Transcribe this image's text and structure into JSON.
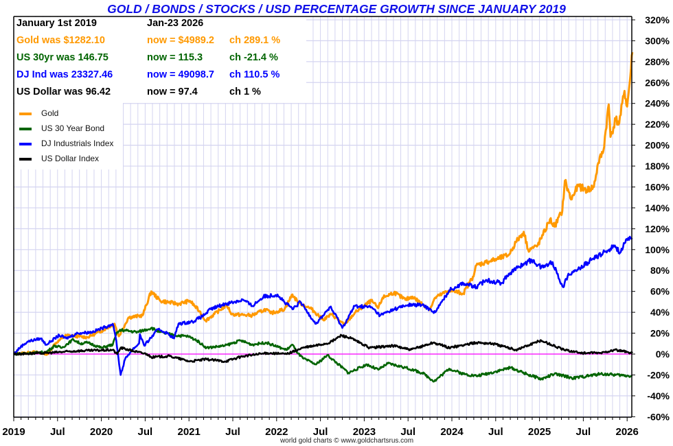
{
  "title": "GOLD / BONDS / STOCKS / USD PERCENTAGE GROWTH SINCE JANUARY 2019",
  "info": {
    "header": [
      "January 1st 2019",
      "Jan-23  2026"
    ],
    "rows": [
      {
        "was": "Gold was $1282.10",
        "now": "now = $4989.2",
        "ch": "ch 289.1 %",
        "color": "#ff9900"
      },
      {
        "was": "US 30yr was 146.75",
        "now": "now = 115.3",
        "ch": "ch -21.4 %",
        "color": "#006400"
      },
      {
        "was": "DJ Ind was 23327.46",
        "now": "now = 49098.7",
        "ch": "ch 110.5 %",
        "color": "#0000ff"
      },
      {
        "was": "US Dollar was 96.42",
        "now": "now = 97.4",
        "ch": "ch 1 %",
        "color": "#000000"
      }
    ]
  },
  "credit": "world gold charts © www.goldchartsrus.com",
  "chart_data": {
    "type": "line",
    "title": "GOLD / BONDS / STOCKS / USD PERCENTAGE GROWTH SINCE JANUARY 2019",
    "x_unit": "years since 2019-01-01",
    "xlim": [
      0,
      7.06
    ],
    "x_tick_labels": [
      "2019",
      "Jul",
      "2020",
      "Jul",
      "2021",
      "Jul",
      "2022",
      "Jul",
      "2023",
      "Jul",
      "2024",
      "Jul",
      "2025",
      "Jul",
      "2026"
    ],
    "y_tick_labels": [
      "320%",
      "300%",
      "280%",
      "260%",
      "240%",
      "220%",
      "200%",
      "180%",
      "160%",
      "140%",
      "120%",
      "100%",
      "80%",
      "60%",
      "40%",
      "20%",
      "0%",
      "-20%",
      "-40%",
      "-60%"
    ],
    "ylim": [
      -60,
      320
    ],
    "grid": true,
    "legend_position": "top-left",
    "zero_line_color": "#ff00ff",
    "series": [
      {
        "name": "Gold",
        "color": "#ff9900",
        "points": [
          [
            0,
            0
          ],
          [
            0.24,
            2
          ],
          [
            0.39,
            0
          ],
          [
            0.47,
            10
          ],
          [
            0.6,
            18
          ],
          [
            0.84,
            16
          ],
          [
            1.0,
            22
          ],
          [
            1.15,
            29
          ],
          [
            1.2,
            17
          ],
          [
            1.31,
            35
          ],
          [
            1.47,
            37
          ],
          [
            1.57,
            60
          ],
          [
            1.67,
            51
          ],
          [
            1.88,
            48
          ],
          [
            2.01,
            51
          ],
          [
            2.12,
            41
          ],
          [
            2.19,
            32
          ],
          [
            2.43,
            47
          ],
          [
            2.49,
            38
          ],
          [
            2.72,
            37
          ],
          [
            2.88,
            43
          ],
          [
            2.93,
            39
          ],
          [
            3.09,
            43
          ],
          [
            3.18,
            57
          ],
          [
            3.24,
            50
          ],
          [
            3.35,
            45
          ],
          [
            3.4,
            43
          ],
          [
            3.53,
            33
          ],
          [
            3.63,
            38
          ],
          [
            3.77,
            28
          ],
          [
            3.9,
            40
          ],
          [
            4.08,
            51
          ],
          [
            4.16,
            44
          ],
          [
            4.21,
            54
          ],
          [
            4.34,
            59
          ],
          [
            4.47,
            52
          ],
          [
            4.55,
            55
          ],
          [
            4.66,
            48
          ],
          [
            4.75,
            43
          ],
          [
            4.81,
            54
          ],
          [
            4.97,
            61
          ],
          [
            5.13,
            58
          ],
          [
            5.24,
            74
          ],
          [
            5.28,
            85
          ],
          [
            5.39,
            88
          ],
          [
            5.52,
            91
          ],
          [
            5.65,
            95
          ],
          [
            5.73,
            107
          ],
          [
            5.82,
            117
          ],
          [
            5.87,
            100
          ],
          [
            5.97,
            103
          ],
          [
            6.04,
            114
          ],
          [
            6.12,
            129
          ],
          [
            6.17,
            122
          ],
          [
            6.26,
            137
          ],
          [
            6.29,
            166
          ],
          [
            6.36,
            148
          ],
          [
            6.44,
            161
          ],
          [
            6.54,
            157
          ],
          [
            6.62,
            160
          ],
          [
            6.67,
            183
          ],
          [
            6.73,
            195
          ],
          [
            6.79,
            239
          ],
          [
            6.81,
            208
          ],
          [
            6.87,
            225
          ],
          [
            6.91,
            221
          ],
          [
            6.97,
            252
          ],
          [
            7.0,
            237
          ],
          [
            7.03,
            260
          ],
          [
            7.06,
            289
          ]
        ]
      },
      {
        "name": "US 30 Year Bond",
        "color": "#006400",
        "points": [
          [
            0,
            0
          ],
          [
            0.37,
            2
          ],
          [
            0.47,
            8
          ],
          [
            0.55,
            6
          ],
          [
            0.68,
            14
          ],
          [
            0.76,
            10
          ],
          [
            0.84,
            11
          ],
          [
            1.0,
            6
          ],
          [
            1.13,
            9
          ],
          [
            1.18,
            21
          ],
          [
            1.23,
            23
          ],
          [
            1.41,
            21
          ],
          [
            1.57,
            25
          ],
          [
            1.67,
            21
          ],
          [
            1.83,
            18
          ],
          [
            1.99,
            17
          ],
          [
            2.09,
            13
          ],
          [
            2.2,
            6
          ],
          [
            2.41,
            8
          ],
          [
            2.59,
            13
          ],
          [
            2.72,
            9
          ],
          [
            2.88,
            11
          ],
          [
            3.11,
            4
          ],
          [
            3.18,
            9
          ],
          [
            3.24,
            1
          ],
          [
            3.3,
            -4
          ],
          [
            3.45,
            -10
          ],
          [
            3.58,
            -1
          ],
          [
            3.82,
            -18
          ],
          [
            4.03,
            -10
          ],
          [
            4.16,
            -15
          ],
          [
            4.27,
            -9
          ],
          [
            4.47,
            -13
          ],
          [
            4.66,
            -18
          ],
          [
            4.8,
            -26
          ],
          [
            4.97,
            -14
          ],
          [
            5.13,
            -19
          ],
          [
            5.28,
            -21
          ],
          [
            5.44,
            -18
          ],
          [
            5.67,
            -13
          ],
          [
            5.85,
            -19
          ],
          [
            6.02,
            -24
          ],
          [
            6.17,
            -19
          ],
          [
            6.39,
            -23
          ],
          [
            6.7,
            -19
          ],
          [
            7.06,
            -21
          ]
        ]
      },
      {
        "name": "DJ Industrials Index",
        "color": "#0000ff",
        "points": [
          [
            0,
            0
          ],
          [
            0.08,
            7
          ],
          [
            0.16,
            12
          ],
          [
            0.31,
            15
          ],
          [
            0.37,
            9
          ],
          [
            0.52,
            18
          ],
          [
            0.6,
            15
          ],
          [
            0.73,
            20
          ],
          [
            0.89,
            21
          ],
          [
            1.05,
            26
          ],
          [
            1.13,
            29
          ],
          [
            1.17,
            13
          ],
          [
            1.22,
            -20
          ],
          [
            1.27,
            -5
          ],
          [
            1.35,
            4
          ],
          [
            1.43,
            10
          ],
          [
            1.44,
            19
          ],
          [
            1.49,
            8
          ],
          [
            1.65,
            24
          ],
          [
            1.75,
            20
          ],
          [
            1.83,
            15
          ],
          [
            1.88,
            29
          ],
          [
            2.04,
            31
          ],
          [
            2.15,
            36
          ],
          [
            2.25,
            43
          ],
          [
            2.41,
            48
          ],
          [
            2.62,
            52
          ],
          [
            2.72,
            46
          ],
          [
            2.85,
            55
          ],
          [
            3.01,
            57
          ],
          [
            3.11,
            48
          ],
          [
            3.19,
            43
          ],
          [
            3.27,
            50
          ],
          [
            3.38,
            37
          ],
          [
            3.45,
            29
          ],
          [
            3.61,
            45
          ],
          [
            3.69,
            35
          ],
          [
            3.75,
            25
          ],
          [
            3.89,
            46
          ],
          [
            4.08,
            45
          ],
          [
            4.18,
            37
          ],
          [
            4.34,
            43
          ],
          [
            4.5,
            47
          ],
          [
            4.66,
            47
          ],
          [
            4.81,
            40
          ],
          [
            4.97,
            61
          ],
          [
            5.13,
            68
          ],
          [
            5.28,
            64
          ],
          [
            5.39,
            71
          ],
          [
            5.57,
            68
          ],
          [
            5.65,
            77
          ],
          [
            5.81,
            86
          ],
          [
            5.91,
            90
          ],
          [
            6.02,
            83
          ],
          [
            6.15,
            88
          ],
          [
            6.2,
            77
          ],
          [
            6.27,
            64
          ],
          [
            6.33,
            77
          ],
          [
            6.44,
            81
          ],
          [
            6.59,
            90
          ],
          [
            6.75,
            98
          ],
          [
            6.86,
            104
          ],
          [
            6.92,
            97
          ],
          [
            6.97,
            106
          ],
          [
            7.04,
            111
          ],
          [
            7.06,
            110
          ]
        ]
      },
      {
        "name": "US Dollar Index",
        "color": "#000000",
        "points": [
          [
            0,
            0
          ],
          [
            0.37,
            1
          ],
          [
            0.73,
            3
          ],
          [
            1.13,
            4
          ],
          [
            1.18,
            0
          ],
          [
            1.22,
            6
          ],
          [
            1.41,
            2
          ],
          [
            1.52,
            0
          ],
          [
            1.57,
            -3
          ],
          [
            1.78,
            -2
          ],
          [
            2.01,
            -7
          ],
          [
            2.2,
            -5
          ],
          [
            2.41,
            -7
          ],
          [
            2.62,
            -2
          ],
          [
            2.9,
            1
          ],
          [
            3.11,
            0
          ],
          [
            3.24,
            4
          ],
          [
            3.3,
            6
          ],
          [
            3.44,
            8
          ],
          [
            3.61,
            11
          ],
          [
            3.74,
            18
          ],
          [
            3.85,
            15
          ],
          [
            4.06,
            6
          ],
          [
            4.34,
            8
          ],
          [
            4.53,
            4
          ],
          [
            4.79,
            11
          ],
          [
            4.97,
            6
          ],
          [
            5.28,
            11
          ],
          [
            5.47,
            10
          ],
          [
            5.73,
            4
          ],
          [
            6.02,
            13
          ],
          [
            6.28,
            4
          ],
          [
            6.49,
            1
          ],
          [
            6.7,
            1
          ],
          [
            6.86,
            4
          ],
          [
            7.06,
            1
          ]
        ]
      }
    ]
  }
}
